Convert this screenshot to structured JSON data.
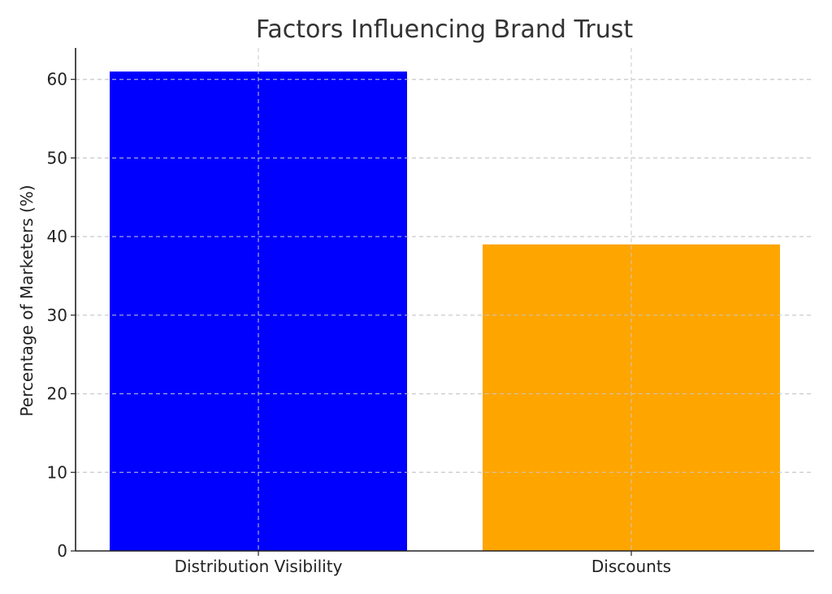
{
  "chart_data": {
    "type": "bar",
    "title": "Factors Influencing Brand Trust",
    "xlabel": "",
    "ylabel": "Percentage of Marketers (%)",
    "categories": [
      "Distribution Visibility",
      "Discounts"
    ],
    "values": [
      61,
      39
    ],
    "colors": [
      "#0000ff",
      "#ffa500"
    ],
    "ylim": [
      0,
      64
    ],
    "yticks": [
      0,
      10,
      20,
      30,
      40,
      50,
      60
    ],
    "grid": true
  }
}
